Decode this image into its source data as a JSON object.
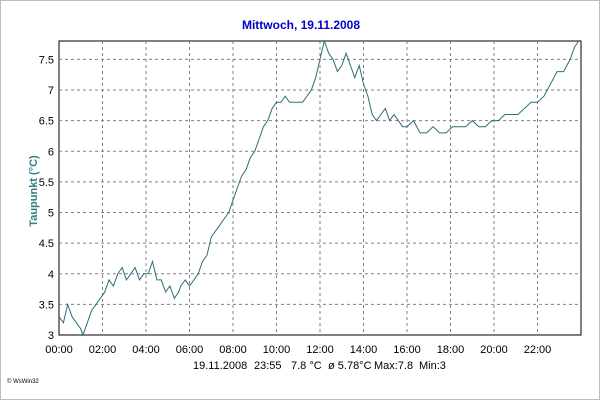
{
  "chart_data": {
    "type": "line",
    "title": "Mittwoch, 19.11.2008",
    "ylabel": "Taupunkt  (°C)",
    "xlabel": "",
    "x_ticks": [
      "00:00",
      "02:00",
      "04:00",
      "06:00",
      "08:00",
      "10:00",
      "12:00",
      "14:00",
      "16:00",
      "18:00",
      "20:00",
      "22:00"
    ],
    "y_ticks": [
      "3",
      "3.5",
      "4",
      "4.5",
      "5",
      "5.5",
      "6",
      "6.5",
      "7",
      "7.5"
    ],
    "xlim": [
      0,
      24
    ],
    "ylim": [
      3,
      7.8
    ],
    "grid": true,
    "line_color": "#2e6f78",
    "series": [
      {
        "name": "",
        "x": [
          0.0,
          0.2,
          0.4,
          0.6,
          0.8,
          1.0,
          1.1,
          1.3,
          1.5,
          1.7,
          1.9,
          2.1,
          2.3,
          2.5,
          2.7,
          2.9,
          3.1,
          3.3,
          3.5,
          3.7,
          3.9,
          4.1,
          4.3,
          4.5,
          4.7,
          4.9,
          5.1,
          5.3,
          5.5,
          5.6,
          5.8,
          6.0,
          6.2,
          6.4,
          6.6,
          6.8,
          7.0,
          7.2,
          7.4,
          7.6,
          7.8,
          8.0,
          8.2,
          8.4,
          8.6,
          8.8,
          9.0,
          9.2,
          9.4,
          9.6,
          9.8,
          10.0,
          10.2,
          10.4,
          10.6,
          10.8,
          11.0,
          11.2,
          11.4,
          11.6,
          11.8,
          12.0,
          12.2,
          12.4,
          12.6,
          12.8,
          13.0,
          13.2,
          13.4,
          13.6,
          13.8,
          14.0,
          14.2,
          14.4,
          14.6,
          14.8,
          15.0,
          15.2,
          15.4,
          15.6,
          15.8,
          16.0,
          16.3,
          16.6,
          16.9,
          17.2,
          17.5,
          17.8,
          18.1,
          18.4,
          18.7,
          19.0,
          19.3,
          19.6,
          19.9,
          20.2,
          20.5,
          20.8,
          21.1,
          21.4,
          21.7,
          22.0,
          22.3,
          22.6,
          22.9,
          23.2,
          23.5,
          23.7,
          23.9
        ],
        "values": [
          3.3,
          3.2,
          3.5,
          3.3,
          3.2,
          3.1,
          3.0,
          3.2,
          3.4,
          3.5,
          3.6,
          3.7,
          3.9,
          3.8,
          4.0,
          4.1,
          3.9,
          4.0,
          4.1,
          3.9,
          4.0,
          4.0,
          4.2,
          3.9,
          3.9,
          3.7,
          3.8,
          3.6,
          3.7,
          3.8,
          3.9,
          3.8,
          3.9,
          4.0,
          4.2,
          4.3,
          4.6,
          4.7,
          4.8,
          4.9,
          5.0,
          5.2,
          5.4,
          5.6,
          5.7,
          5.9,
          6.0,
          6.2,
          6.4,
          6.5,
          6.7,
          6.8,
          6.8,
          6.9,
          6.8,
          6.8,
          6.8,
          6.8,
          6.9,
          7.0,
          7.2,
          7.5,
          7.8,
          7.6,
          7.5,
          7.3,
          7.4,
          7.6,
          7.4,
          7.2,
          7.4,
          7.1,
          6.9,
          6.6,
          6.5,
          6.6,
          6.7,
          6.5,
          6.6,
          6.5,
          6.4,
          6.4,
          6.5,
          6.3,
          6.3,
          6.4,
          6.3,
          6.3,
          6.4,
          6.4,
          6.4,
          6.5,
          6.4,
          6.4,
          6.5,
          6.5,
          6.6,
          6.6,
          6.6,
          6.7,
          6.8,
          6.8,
          6.9,
          7.1,
          7.3,
          7.3,
          7.5,
          7.7,
          7.8
        ]
      }
    ]
  },
  "footer": {
    "date": "19.11.2008",
    "time": "23:55",
    "current": "7.8 °C",
    "average": "ø 5.78°C",
    "max": "Max:7.8",
    "min": "Min:3"
  },
  "copyright": "© WsWin32"
}
